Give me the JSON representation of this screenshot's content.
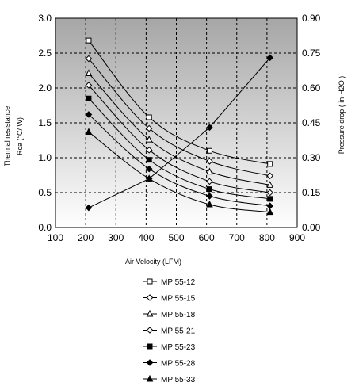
{
  "chart_data": {
    "type": "line",
    "xlabel": "Air Velocity (LFM)",
    "ylabel_lines": [
      "Thermal resistance",
      "Rca (°C/ W)"
    ],
    "y2label": "Pressure drop ( in-H2O )",
    "xlim": [
      100,
      900
    ],
    "ylim": [
      0,
      3
    ],
    "y2lim": [
      0,
      0.9
    ],
    "x_ticks": [
      "100",
      "200",
      "300",
      "400",
      "500",
      "600",
      "700",
      "800",
      "900"
    ],
    "y_ticks": [
      "0.0",
      "0.5",
      "1.0",
      "1.5",
      "2.0",
      "2.5",
      "3.0"
    ],
    "y2_ticks": [
      "0.00",
      "0.15",
      "0.30",
      "0.45",
      "0.60",
      "0.75",
      "0.90"
    ],
    "grid": true,
    "legend_position": "bottom",
    "background": "gray-gradient",
    "series": [
      {
        "name": "MP 55-12",
        "marker": "open-square",
        "x": [
          210,
          410,
          610,
          810
        ],
        "y": [
          2.68,
          1.58,
          1.1,
          0.91
        ]
      },
      {
        "name": "MP 55-15",
        "marker": "open-diamond",
        "x": [
          210,
          410,
          610,
          810
        ],
        "y": [
          2.42,
          1.42,
          0.95,
          0.74
        ]
      },
      {
        "name": "MP 55-18",
        "marker": "open-triangle",
        "x": [
          210,
          410,
          610,
          810
        ],
        "y": [
          2.21,
          1.26,
          0.8,
          0.61
        ]
      },
      {
        "name": "MP 55-21",
        "marker": "open-diamond",
        "x": [
          210,
          410,
          610,
          810
        ],
        "y": [
          2.04,
          1.11,
          0.66,
          0.5
        ]
      },
      {
        "name": "MP 55-23",
        "marker": "filled-square",
        "x": [
          210,
          410,
          610,
          810
        ],
        "y": [
          1.85,
          0.97,
          0.55,
          0.41
        ]
      },
      {
        "name": "MP 55-28",
        "marker": "filled-diamond",
        "x": [
          210,
          410,
          610,
          810
        ],
        "y": [
          1.62,
          0.84,
          0.45,
          0.31
        ]
      },
      {
        "name": "MP 55-33",
        "marker": "filled-triangle",
        "x": [
          210,
          410,
          610,
          810
        ],
        "y": [
          1.37,
          0.7,
          0.33,
          0.22
        ]
      }
    ],
    "pressure_series": {
      "axis": "right",
      "marker": "filled-diamond",
      "x": [
        210,
        410,
        610,
        810
      ],
      "y": [
        0.085,
        0.21,
        0.43,
        0.73
      ]
    }
  }
}
